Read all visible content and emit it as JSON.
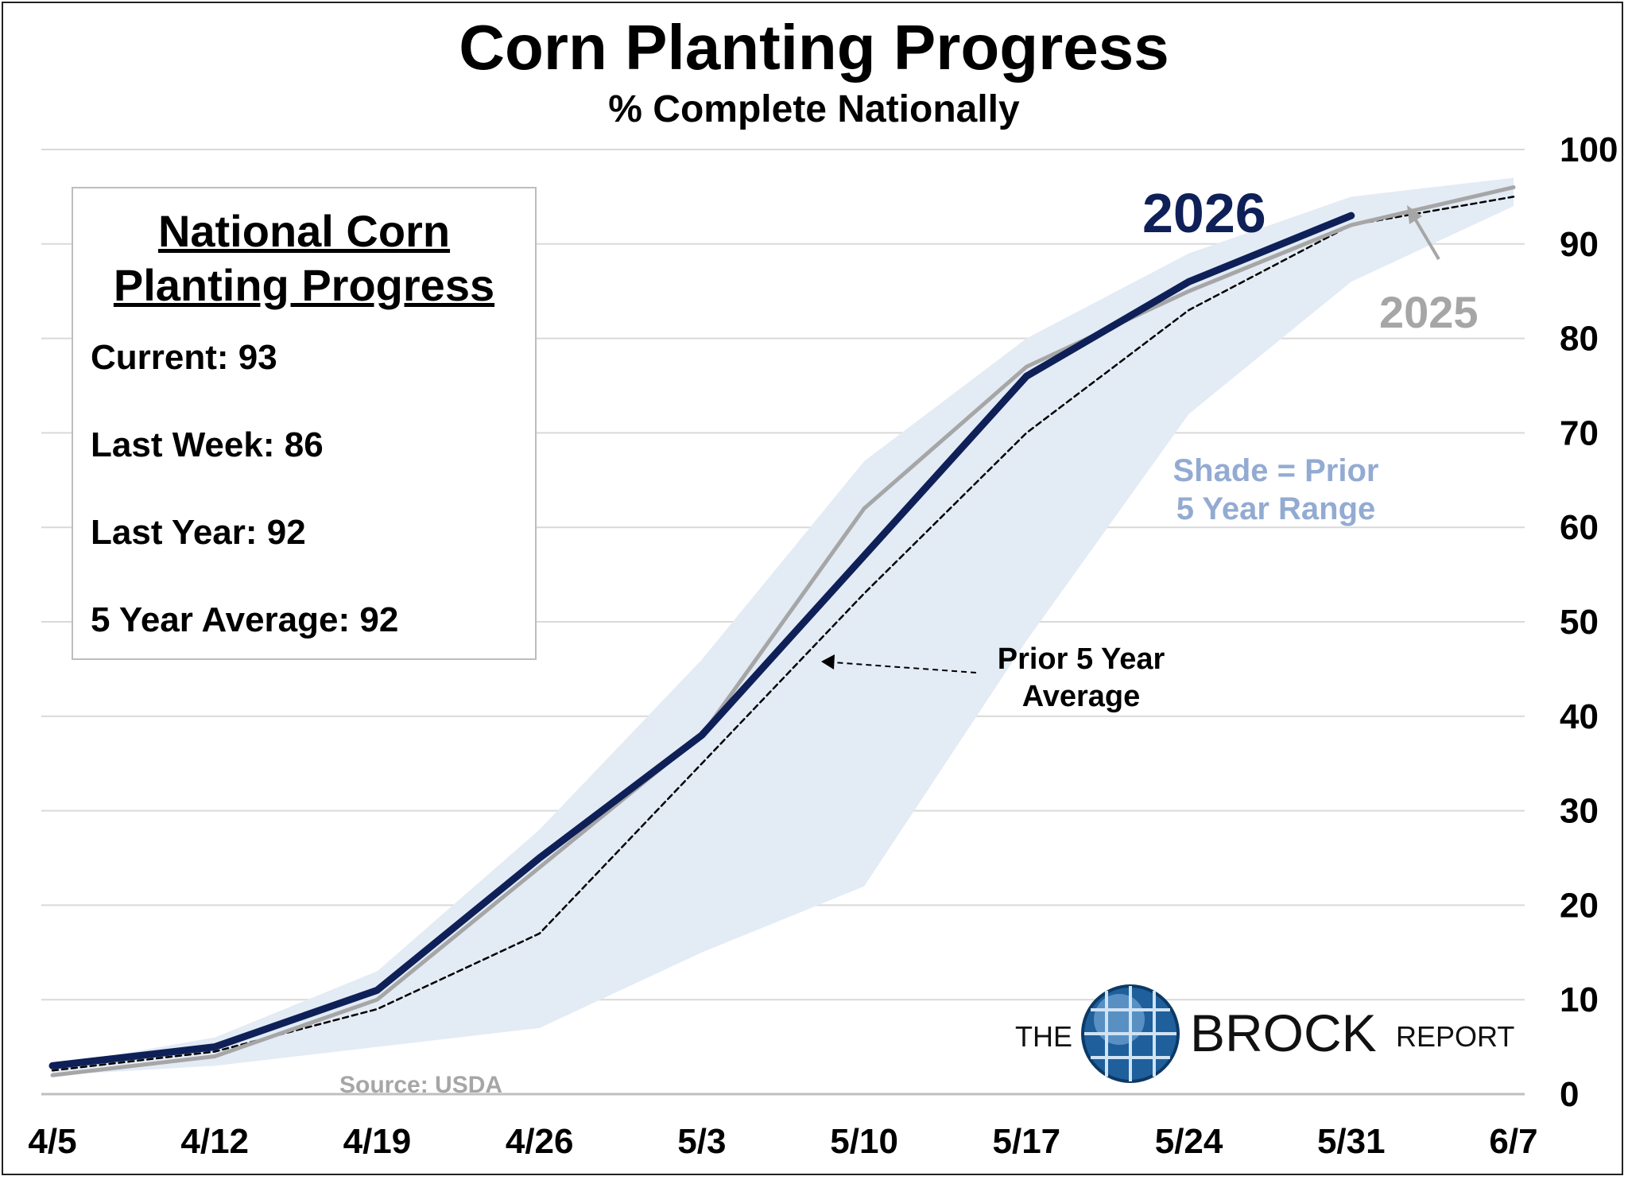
{
  "header": {
    "title": "Corn Planting Progress",
    "subtitle": "% Complete Nationally"
  },
  "infobox": {
    "title_line1": "National Corn",
    "title_line2": "Planting Progress",
    "current": "Current: 93",
    "last_week": "Last Week: 86",
    "last_year": "Last Year: 92",
    "five_year_avg": "5 Year Average: 92"
  },
  "annotations": {
    "label_2026": "2026",
    "label_2025": "2025",
    "shade_line1": "Shade = Prior",
    "shade_line2": "5 Year Range",
    "avg_line1": "Prior 5 Year",
    "avg_line2": "Average",
    "source": "Source: USDA"
  },
  "logo": {
    "the": "THE",
    "brock": "BROCK",
    "report": "REPORT"
  },
  "colors": {
    "series_2026": "#0e2057",
    "series_2025": "#a6a6a6",
    "average": "#000000",
    "range_shade": "#e3ebf5",
    "gridline": "#d9d9d9"
  },
  "chart_data": {
    "type": "line",
    "x": [
      "4/5",
      "4/12",
      "4/19",
      "4/26",
      "5/3",
      "5/10",
      "5/17",
      "5/24",
      "5/31",
      "6/7"
    ],
    "ylim": [
      0,
      100
    ],
    "yticks": [
      0,
      10,
      20,
      30,
      40,
      50,
      60,
      70,
      80,
      90,
      100
    ],
    "y_axis_position": "right",
    "grid": true,
    "series": [
      {
        "name": "2026",
        "style": "solid-thick",
        "values": [
          3,
          5,
          11,
          25,
          38,
          57,
          76,
          86,
          93,
          null
        ]
      },
      {
        "name": "2025",
        "style": "solid",
        "values": [
          2,
          4,
          10,
          24,
          38,
          62,
          77,
          85,
          92,
          96
        ]
      },
      {
        "name": "Prior 5 Year Average",
        "style": "dashed",
        "values": [
          2.5,
          4.5,
          9,
          17,
          35,
          53,
          70,
          83,
          92,
          95
        ]
      },
      {
        "name": "Prior 5 Year Range",
        "style": "band",
        "low": [
          2,
          3,
          5,
          7,
          15,
          22,
          48,
          72,
          86,
          94
        ],
        "high": [
          3,
          6,
          13,
          28,
          46,
          67,
          80,
          89,
          95,
          97
        ]
      }
    ]
  }
}
